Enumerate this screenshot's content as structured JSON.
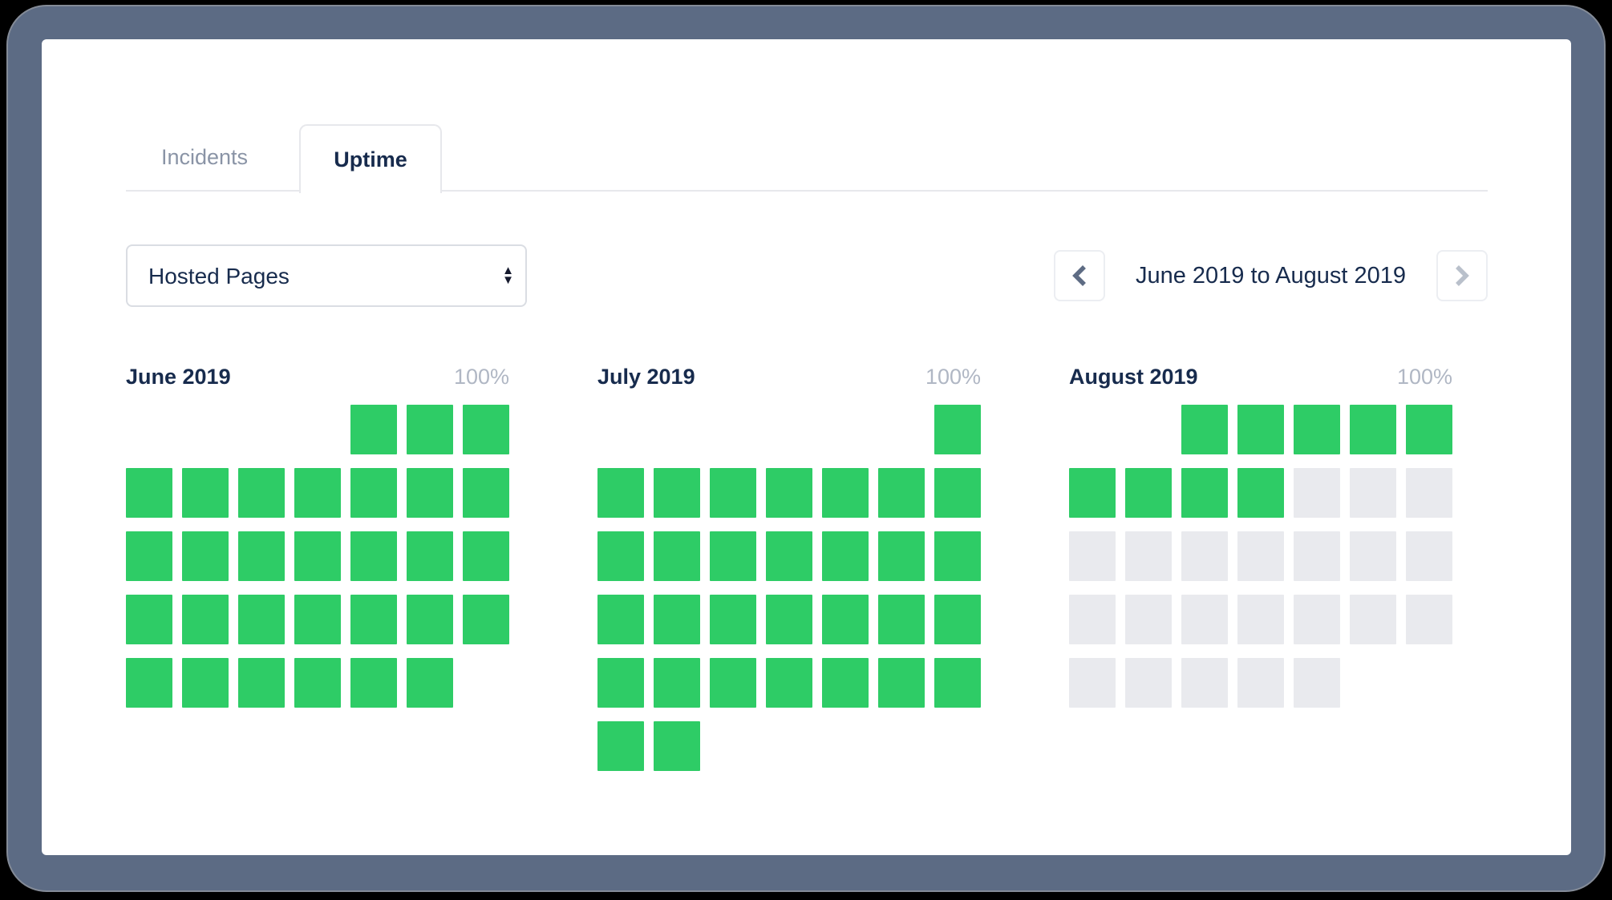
{
  "tabs": [
    {
      "label": "Incidents",
      "active": false
    },
    {
      "label": "Uptime",
      "active": true
    }
  ],
  "filter": {
    "selected_option": "Hosted Pages"
  },
  "range_nav": {
    "label": "June 2019 to August 2019",
    "prev_enabled": true,
    "next_enabled": false
  },
  "colors": {
    "operational": "#2ecc66",
    "no_data": "#e9eaee",
    "heading_text": "#172b4d",
    "muted_text": "#b0b7c4",
    "frame": "#5c6b84"
  },
  "cell_legend": {
    "0": "outside-month",
    "1": "operational",
    "2": "no-data-yet"
  },
  "months": [
    {
      "name": "June 2019",
      "uptime": "100%",
      "weeks": [
        [
          0,
          0,
          0,
          0,
          1,
          1,
          1
        ],
        [
          1,
          1,
          1,
          1,
          1,
          1,
          1
        ],
        [
          1,
          1,
          1,
          1,
          1,
          1,
          1
        ],
        [
          1,
          1,
          1,
          1,
          1,
          1,
          1
        ],
        [
          1,
          1,
          1,
          1,
          1,
          1,
          0
        ]
      ]
    },
    {
      "name": "July 2019",
      "uptime": "100%",
      "weeks": [
        [
          0,
          0,
          0,
          0,
          0,
          0,
          1
        ],
        [
          1,
          1,
          1,
          1,
          1,
          1,
          1
        ],
        [
          1,
          1,
          1,
          1,
          1,
          1,
          1
        ],
        [
          1,
          1,
          1,
          1,
          1,
          1,
          1
        ],
        [
          1,
          1,
          1,
          1,
          1,
          1,
          1
        ],
        [
          1,
          1,
          0,
          0,
          0,
          0,
          0
        ]
      ]
    },
    {
      "name": "August 2019",
      "uptime": "100%",
      "weeks": [
        [
          0,
          0,
          1,
          1,
          1,
          1,
          1
        ],
        [
          1,
          1,
          1,
          1,
          2,
          2,
          2
        ],
        [
          2,
          2,
          2,
          2,
          2,
          2,
          2
        ],
        [
          2,
          2,
          2,
          2,
          2,
          2,
          2
        ],
        [
          2,
          2,
          2,
          2,
          2,
          0,
          0
        ]
      ]
    }
  ]
}
